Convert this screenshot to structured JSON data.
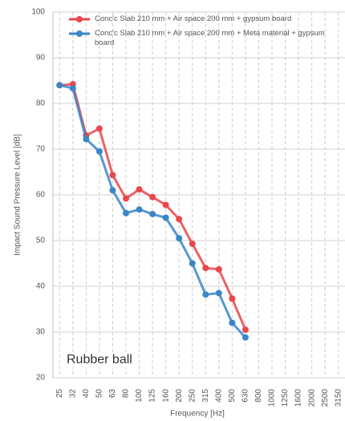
{
  "chart_data": {
    "type": "line",
    "xlabel": "Frequency [Hz]",
    "ylabel": "Impact Sound Pressure Level [dB]",
    "annotation": "Rubber ball",
    "categories": [
      "25",
      "32",
      "40",
      "50",
      "63",
      "80",
      "100",
      "125",
      "160",
      "200",
      "250",
      "315",
      "400",
      "500",
      "630",
      "800",
      "1000",
      "1250",
      "1600",
      "2000",
      "2500",
      "3150"
    ],
    "series": [
      {
        "name": "Conc'c Slab 210 mm + Air space 200 mm + gypsum board",
        "color": "#e8474c",
        "values": [
          84,
          84.2,
          73,
          74.5,
          64.3,
          59.2,
          61.2,
          59.5,
          57.8,
          54.7,
          49.3,
          44,
          43.7,
          37.3,
          30.5,
          null,
          null,
          null,
          null,
          null,
          null,
          null
        ]
      },
      {
        "name": "Conc'c Slab 210 mm + Air space 200 mm + Meta material + gypsum board",
        "color": "#3a86c8",
        "values": [
          84,
          83.3,
          72.2,
          69.5,
          61,
          56,
          56.8,
          55.8,
          55,
          50.5,
          45,
          38.2,
          38.5,
          32,
          28.8,
          null,
          null,
          null,
          null,
          null,
          null,
          null
        ]
      }
    ],
    "ylim": [
      20,
      100
    ],
    "yticks": [
      20,
      30,
      40,
      50,
      60,
      70,
      80,
      90,
      100
    ],
    "grid": true
  }
}
